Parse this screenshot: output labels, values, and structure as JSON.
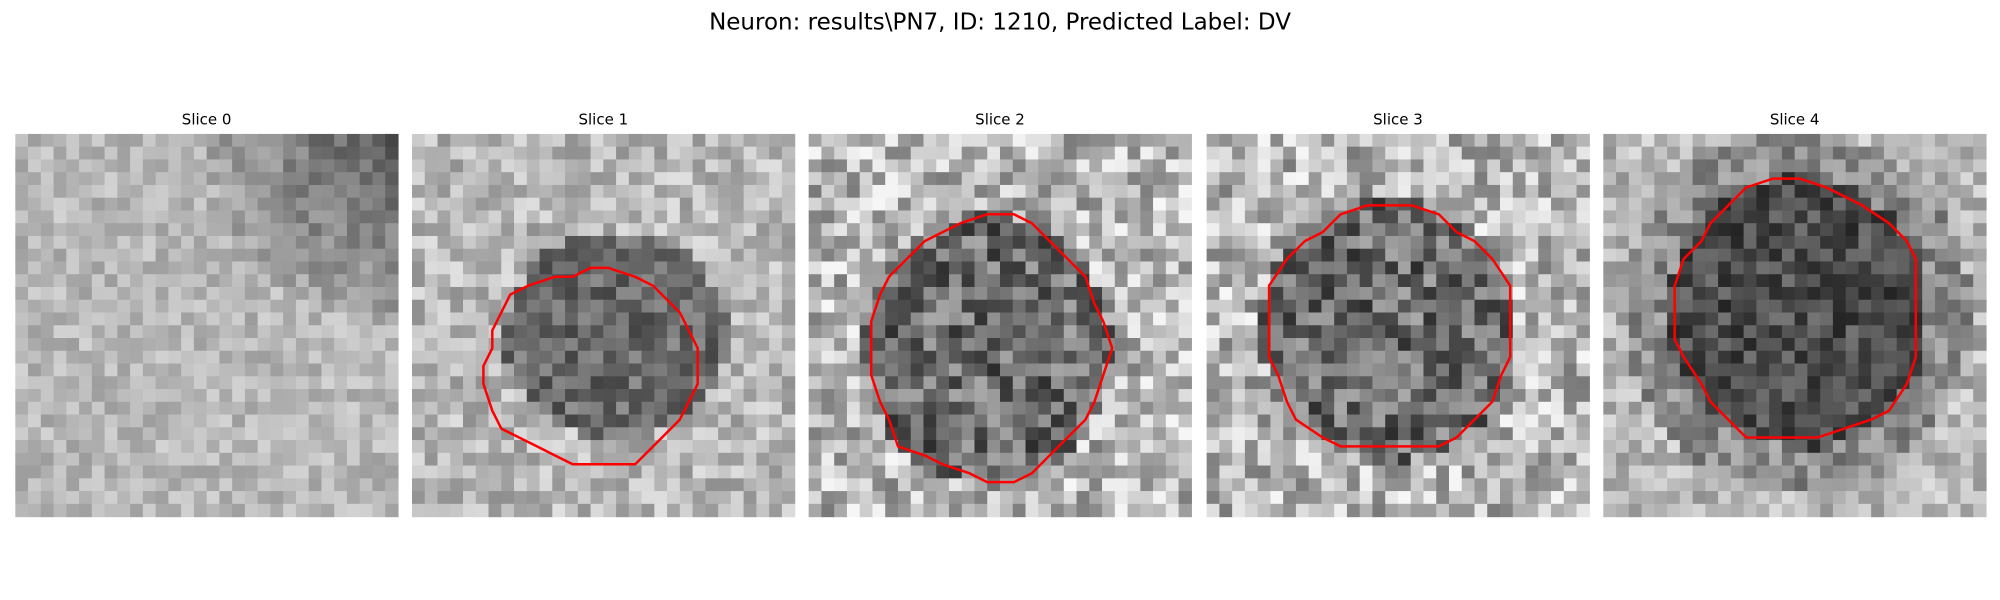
{
  "title": "Neuron: results\\PN7, ID: 1210, Predicted Label: DV",
  "panels": [
    {
      "title": "Slice 0"
    },
    {
      "title": "Slice 1"
    },
    {
      "title": "Slice 2"
    },
    {
      "title": "Slice 3"
    },
    {
      "title": "Slice 4"
    }
  ]
}
